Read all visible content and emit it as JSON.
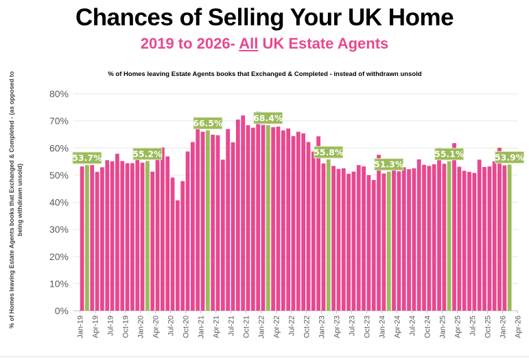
{
  "header": {
    "title": "Chances of Selling Your UK Home",
    "subtitle_pre": "2019 to 2026- ",
    "subtitle_em": "All",
    "subtitle_post": " UK Estate Agents"
  },
  "chart_data": {
    "type": "bar",
    "title": "% of Homes leaving Estate Agents books that Exchanged & Completed - instead of withdrawn unsold",
    "ylabel": "% of Homes leaving Estate Agents books that Exchanged & Completed - (as opposed to being withdrawn unsold)",
    "ylabel_lines": [
      "% of Homes leaving Estate Agents books that Exchanged & Completed - (as opposed to",
      "being withdrawn unsold)"
    ],
    "ylim": [
      0,
      80
    ],
    "yticks": [
      "0%",
      "10%",
      "20%",
      "30%",
      "40%",
      "50%",
      "60%",
      "70%",
      "80%"
    ],
    "grid": true,
    "xticks": [
      "Jan-19",
      "Apr-19",
      "Jul-19",
      "Oct-19",
      "Jan-20",
      "Apr-20",
      "Jul-20",
      "Oct-20",
      "Jan-21",
      "Apr-21",
      "Jul-21",
      "Oct-21",
      "Jan-22",
      "Apr-22",
      "Jul-22",
      "Oct-22",
      "Jan-23",
      "Apr-23",
      "Jul-23",
      "Oct-23",
      "Jan-24",
      "Apr-24",
      "Jul-24",
      "Oct-24",
      "Jan-25",
      "Apr-25",
      "Jul-25",
      "Oct-25",
      "Jan-26",
      "Apr-26"
    ],
    "start_month": "Jan-19",
    "values": [
      53.2,
      53.7,
      53.7,
      51.2,
      52.9,
      55.5,
      55.1,
      57.9,
      55.2,
      54.4,
      54.4,
      60.0,
      54.6,
      55.2,
      51.3,
      56.2,
      60.2,
      56.9,
      49.1,
      40.7,
      47.8,
      58.7,
      62.2,
      67.1,
      66.0,
      66.5,
      64.9,
      64.7,
      55.7,
      67.0,
      62.1,
      70.5,
      72.0,
      68.4,
      67.5,
      73.4,
      68.5,
      68.4,
      67.7,
      67.9,
      66.5,
      67.2,
      64.4,
      66.0,
      65.4,
      62.2,
      58.7,
      64.3,
      54.3,
      55.8,
      53.4,
      52.3,
      52.5,
      50.5,
      51.3,
      53.7,
      53.2,
      50.0,
      48.2,
      57.5,
      50.6,
      51.3,
      54.2,
      51.4,
      52.9,
      52.2,
      52.5,
      55.8,
      53.8,
      53.4,
      54.0,
      60.1,
      54.2,
      55.1,
      61.8,
      53.1,
      51.6,
      51.2,
      50.8,
      55.7,
      53.0,
      53.2,
      55.1,
      60.1,
      53.6,
      53.9
    ],
    "highlighted": [
      {
        "index": 1,
        "label": "53.7%"
      },
      {
        "index": 13,
        "label": "55.2%"
      },
      {
        "index": 25,
        "label": "66.5%"
      },
      {
        "index": 37,
        "label": "68.4%"
      },
      {
        "index": 49,
        "label": "55.8%"
      },
      {
        "index": 61,
        "label": "51.3%"
      },
      {
        "index": 73,
        "label": "55.1%"
      },
      {
        "index": 85,
        "label": "53.9%"
      }
    ],
    "colors": {
      "bar": "#e8488f",
      "highlight": "#9bbb59",
      "grid": "#e6e6e6",
      "tick_text": "#595959"
    }
  }
}
